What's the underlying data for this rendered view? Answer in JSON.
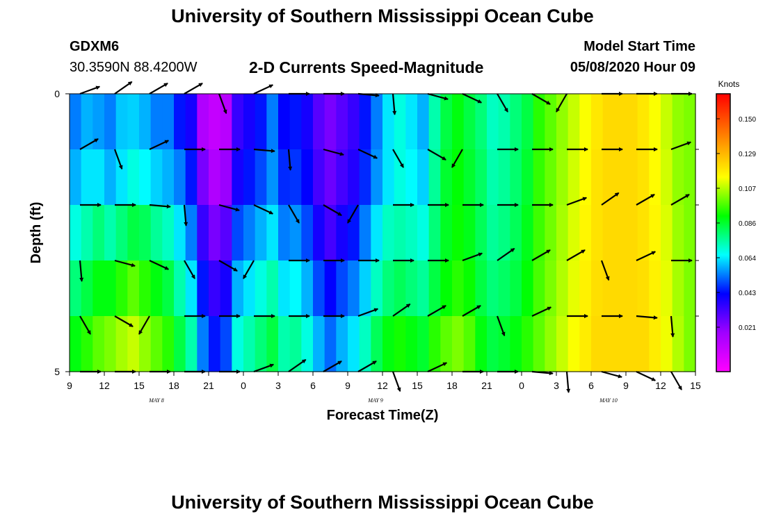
{
  "header": {
    "title": "University of Southern Mississippi Ocean Cube",
    "station_id": "GDXM6",
    "station_coords": "30.3590N 88.4200W",
    "subtitle": "2-D Currents Speed-Magnitude",
    "model_start_label": "Model Start Time",
    "model_start_value": "05/08/2020 Hour 09"
  },
  "footer": {
    "title": "University of Southern Mississippi Ocean Cube"
  },
  "colorbar": {
    "unit": "Knots",
    "ticks": [
      "0.150",
      "0.129",
      "0.107",
      "0.086",
      "0.064",
      "0.043",
      "0.021"
    ],
    "min": 0.0,
    "max": 0.172
  },
  "chart_data": {
    "type": "heatmap",
    "title": "2-D Currents Speed-Magnitude",
    "xlabel": "Forecast Time(Z)",
    "ylabel": "Depth (ft)",
    "ylim": [
      0,
      5
    ],
    "x_tick_labels": [
      "9",
      "12",
      "15",
      "18",
      "21",
      "0",
      "3",
      "6",
      "9",
      "12",
      "15",
      "18",
      "21",
      "0",
      "3",
      "6",
      "9",
      "12",
      "15"
    ],
    "date_labels": [
      {
        "label": "MAY 8",
        "tick_index": 2.5
      },
      {
        "label": "MAY 9",
        "tick_index": 8.8
      },
      {
        "label": "MAY 10",
        "tick_index": 15.5
      }
    ],
    "y_tick_labels": [
      "0",
      "5"
    ],
    "n_columns": 54,
    "depth_rows": 5,
    "speed_knots": [
      [
        0.06,
        0.065,
        0.063,
        0.06,
        0.067,
        0.068,
        0.065,
        0.06,
        0.06,
        0.05,
        0.045,
        0.02,
        0.015,
        0.018,
        0.04,
        0.045,
        0.05,
        0.06,
        0.048,
        0.05,
        0.045,
        0.035,
        0.03,
        0.035,
        0.04,
        0.05,
        0.06,
        0.07,
        0.075,
        0.07,
        0.065,
        0.08,
        0.09,
        0.095,
        0.09,
        0.085,
        0.078,
        0.08,
        0.085,
        0.09,
        0.1,
        0.105,
        0.11,
        0.115,
        0.12,
        0.125,
        0.128,
        0.128,
        0.128,
        0.125,
        0.12,
        0.115,
        0.11,
        0.108
      ],
      [
        0.065,
        0.07,
        0.07,
        0.065,
        0.07,
        0.075,
        0.072,
        0.068,
        0.065,
        0.06,
        0.05,
        0.03,
        0.02,
        0.025,
        0.045,
        0.05,
        0.055,
        0.062,
        0.052,
        0.053,
        0.048,
        0.038,
        0.032,
        0.038,
        0.043,
        0.052,
        0.062,
        0.07,
        0.075,
        0.072,
        0.068,
        0.082,
        0.092,
        0.096,
        0.092,
        0.087,
        0.08,
        0.082,
        0.086,
        0.092,
        0.101,
        0.106,
        0.111,
        0.116,
        0.121,
        0.126,
        0.128,
        0.128,
        0.128,
        0.126,
        0.121,
        0.116,
        0.11,
        0.108
      ],
      [
        0.075,
        0.08,
        0.085,
        0.08,
        0.085,
        0.09,
        0.088,
        0.082,
        0.078,
        0.07,
        0.06,
        0.04,
        0.03,
        0.035,
        0.055,
        0.06,
        0.065,
        0.07,
        0.06,
        0.062,
        0.055,
        0.045,
        0.038,
        0.045,
        0.05,
        0.06,
        0.07,
        0.078,
        0.08,
        0.078,
        0.075,
        0.085,
        0.093,
        0.097,
        0.094,
        0.088,
        0.082,
        0.084,
        0.088,
        0.094,
        0.102,
        0.107,
        0.112,
        0.117,
        0.122,
        0.126,
        0.128,
        0.128,
        0.128,
        0.126,
        0.122,
        0.117,
        0.111,
        0.108
      ],
      [
        0.085,
        0.09,
        0.095,
        0.095,
        0.1,
        0.105,
        0.1,
        0.095,
        0.09,
        0.08,
        0.07,
        0.05,
        0.04,
        0.045,
        0.065,
        0.07,
        0.075,
        0.08,
        0.07,
        0.072,
        0.065,
        0.055,
        0.048,
        0.055,
        0.06,
        0.068,
        0.078,
        0.085,
        0.088,
        0.085,
        0.082,
        0.09,
        0.096,
        0.1,
        0.097,
        0.09,
        0.085,
        0.087,
        0.09,
        0.096,
        0.103,
        0.108,
        0.113,
        0.118,
        0.123,
        0.127,
        0.128,
        0.128,
        0.128,
        0.127,
        0.123,
        0.118,
        0.112,
        0.108
      ],
      [
        0.095,
        0.1,
        0.105,
        0.108,
        0.112,
        0.115,
        0.11,
        0.105,
        0.1,
        0.09,
        0.08,
        0.06,
        0.05,
        0.055,
        0.075,
        0.08,
        0.085,
        0.09,
        0.08,
        0.082,
        0.075,
        0.065,
        0.058,
        0.065,
        0.07,
        0.078,
        0.088,
        0.095,
        0.098,
        0.095,
        0.092,
        0.1,
        0.105,
        0.108,
        0.104,
        0.095,
        0.09,
        0.092,
        0.095,
        0.1,
        0.105,
        0.11,
        0.115,
        0.12,
        0.124,
        0.128,
        0.128,
        0.128,
        0.128,
        0.128,
        0.124,
        0.119,
        0.113,
        0.108
      ]
    ],
    "current_vectors_note": "Arrows show current direction at each depth level (rows) along forecast time."
  }
}
